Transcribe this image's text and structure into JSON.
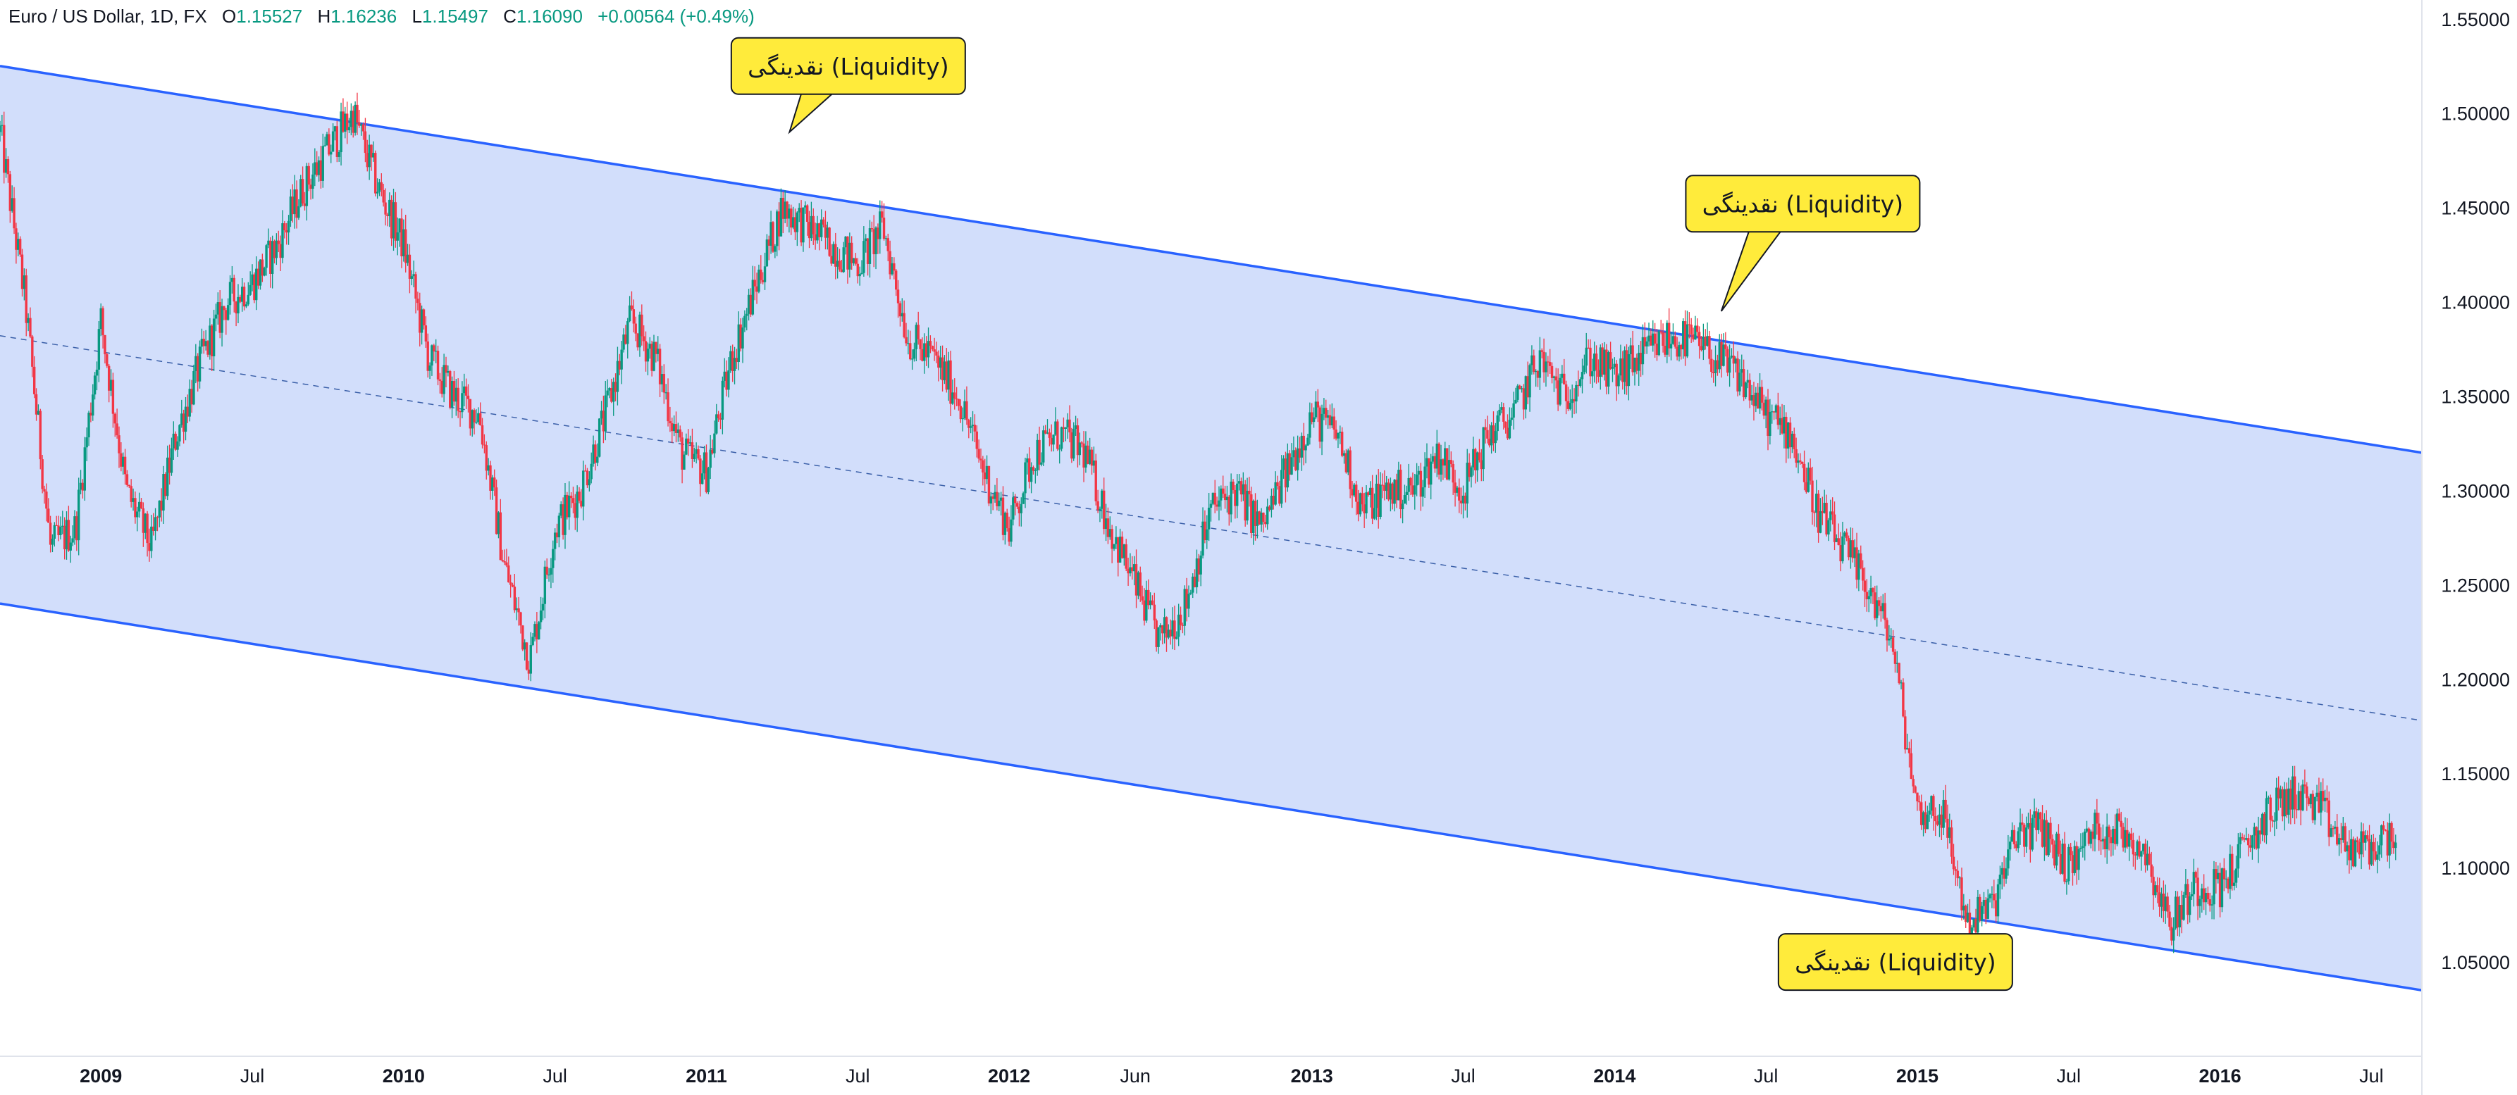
{
  "legend": {
    "symbol": "Euro / US Dollar, 1D, FX",
    "open_label": "O",
    "open": "1.15527",
    "high_label": "H",
    "high": "1.16236",
    "low_label": "L",
    "low": "1.15497",
    "close_label": "C",
    "close": "1.16090",
    "change": "+0.00564 (+0.49%)"
  },
  "colors": {
    "up": "#089981",
    "down": "#f23645",
    "channel_line": "#2962ff",
    "channel_fill": "#d2defb",
    "callout_fill": "#ffeb3b",
    "callout_stroke": "#131722"
  },
  "chart_data": {
    "type": "candlestick",
    "title": "",
    "x_range": [
      "2008-09",
      "2016-09"
    ],
    "ylim": [
      1.0,
      1.56
    ],
    "y_ticks": [
      "1.55000",
      "1.50000",
      "1.45000",
      "1.40000",
      "1.35000",
      "1.30000",
      "1.25000",
      "1.20000",
      "1.15000",
      "1.10000",
      "1.05000"
    ],
    "x_ticks": [
      {
        "label": "2009",
        "date": "2009-01",
        "year": true
      },
      {
        "label": "Jul",
        "date": "2009-07",
        "year": false
      },
      {
        "label": "2010",
        "date": "2010-01",
        "year": true
      },
      {
        "label": "Jul",
        "date": "2010-07",
        "year": false
      },
      {
        "label": "2011",
        "date": "2011-01",
        "year": true
      },
      {
        "label": "Jul",
        "date": "2011-07",
        "year": false
      },
      {
        "label": "2012",
        "date": "2012-01",
        "year": true
      },
      {
        "label": "Jun",
        "date": "2012-06",
        "year": false
      },
      {
        "label": "2013",
        "date": "2013-01",
        "year": true
      },
      {
        "label": "Jul",
        "date": "2013-07",
        "year": false
      },
      {
        "label": "2014",
        "date": "2014-01",
        "year": true
      },
      {
        "label": "Jul",
        "date": "2014-07",
        "year": false
      },
      {
        "label": "2015",
        "date": "2015-01",
        "year": true
      },
      {
        "label": "Jul",
        "date": "2015-07",
        "year": false
      },
      {
        "label": "2016",
        "date": "2016-01",
        "year": true
      },
      {
        "label": "Jul",
        "date": "2016-07",
        "year": false
      }
    ],
    "price_path": [
      [
        "2008-09",
        1.49
      ],
      [
        "2008-10",
        1.4
      ],
      [
        "2008-11",
        1.27
      ],
      [
        "2008-12",
        1.28
      ],
      [
        "2009-01",
        1.39
      ],
      [
        "2009-02",
        1.3
      ],
      [
        "2009-03",
        1.27
      ],
      [
        "2009-04",
        1.33
      ],
      [
        "2009-05",
        1.37
      ],
      [
        "2009-06",
        1.4
      ],
      [
        "2009-07",
        1.41
      ],
      [
        "2009-08",
        1.43
      ],
      [
        "2009-09",
        1.46
      ],
      [
        "2009-10",
        1.48
      ],
      [
        "2009-11",
        1.5
      ],
      [
        "2009-12",
        1.46
      ],
      [
        "2010-01",
        1.43
      ],
      [
        "2010-02",
        1.37
      ],
      [
        "2010-03",
        1.35
      ],
      [
        "2010-04",
        1.34
      ],
      [
        "2010-05",
        1.26
      ],
      [
        "2010-06",
        1.21
      ],
      [
        "2010-07",
        1.28
      ],
      [
        "2010-08",
        1.3
      ],
      [
        "2010-09",
        1.34
      ],
      [
        "2010-10",
        1.39
      ],
      [
        "2010-11",
        1.37
      ],
      [
        "2010-12",
        1.32
      ],
      [
        "2011-01",
        1.31
      ],
      [
        "2011-02",
        1.37
      ],
      [
        "2011-03",
        1.41
      ],
      [
        "2011-04",
        1.45
      ],
      [
        "2011-05",
        1.44
      ],
      [
        "2011-06",
        1.43
      ],
      [
        "2011-07",
        1.42
      ],
      [
        "2011-08",
        1.44
      ],
      [
        "2011-09",
        1.38
      ],
      [
        "2011-10",
        1.37
      ],
      [
        "2011-11",
        1.35
      ],
      [
        "2011-12",
        1.31
      ],
      [
        "2012-01",
        1.28
      ],
      [
        "2012-02",
        1.32
      ],
      [
        "2012-03",
        1.33
      ],
      [
        "2012-04",
        1.32
      ],
      [
        "2012-05",
        1.28
      ],
      [
        "2012-06",
        1.25
      ],
      [
        "2012-07",
        1.22
      ],
      [
        "2012-08",
        1.24
      ],
      [
        "2012-09",
        1.29
      ],
      [
        "2012-10",
        1.3
      ],
      [
        "2012-11",
        1.28
      ],
      [
        "2012-12",
        1.31
      ],
      [
        "2013-01",
        1.34
      ],
      [
        "2013-02",
        1.33
      ],
      [
        "2013-03",
        1.29
      ],
      [
        "2013-04",
        1.3
      ],
      [
        "2013-05",
        1.3
      ],
      [
        "2013-06",
        1.32
      ],
      [
        "2013-07",
        1.3
      ],
      [
        "2013-08",
        1.33
      ],
      [
        "2013-09",
        1.34
      ],
      [
        "2013-10",
        1.37
      ],
      [
        "2013-11",
        1.35
      ],
      [
        "2013-12",
        1.37
      ],
      [
        "2014-01",
        1.36
      ],
      [
        "2014-02",
        1.37
      ],
      [
        "2014-03",
        1.38
      ],
      [
        "2014-04",
        1.38
      ],
      [
        "2014-05",
        1.37
      ],
      [
        "2014-06",
        1.36
      ],
      [
        "2014-07",
        1.34
      ],
      [
        "2014-08",
        1.33
      ],
      [
        "2014-09",
        1.29
      ],
      [
        "2014-10",
        1.27
      ],
      [
        "2014-11",
        1.25
      ],
      [
        "2014-12",
        1.22
      ],
      [
        "2015-01",
        1.13
      ],
      [
        "2015-02",
        1.13
      ],
      [
        "2015-03",
        1.07
      ],
      [
        "2015-04",
        1.08
      ],
      [
        "2015-05",
        1.12
      ],
      [
        "2015-06",
        1.12
      ],
      [
        "2015-07",
        1.1
      ],
      [
        "2015-08",
        1.12
      ],
      [
        "2015-09",
        1.12
      ],
      [
        "2015-10",
        1.11
      ],
      [
        "2015-11",
        1.07
      ],
      [
        "2015-12",
        1.09
      ],
      [
        "2016-01",
        1.09
      ],
      [
        "2016-02",
        1.11
      ],
      [
        "2016-03",
        1.13
      ],
      [
        "2016-04",
        1.14
      ],
      [
        "2016-05",
        1.13
      ],
      [
        "2016-06",
        1.11
      ],
      [
        "2016-07",
        1.11
      ],
      [
        "2016-08",
        1.12
      ]
    ],
    "channel": {
      "upper": [
        [
          "2008-09",
          1.525
        ],
        [
          "2016-09",
          1.32
        ]
      ],
      "lower": [
        [
          "2008-09",
          1.24
        ],
        [
          "2016-09",
          1.035
        ]
      ],
      "mid": [
        [
          "2008-09",
          1.382
        ],
        [
          "2016-09",
          1.178
        ]
      ]
    },
    "annotations": [
      {
        "text": "نقدینگی (Liquidity)",
        "date": "2011-04-10",
        "price": 1.49,
        "box_date": "2011-06-20",
        "box_price": 1.525
      },
      {
        "text": "نقدینگی (Liquidity)",
        "date": "2014-05-08",
        "price": 1.395,
        "box_date": "2014-08-15",
        "box_price": 1.452
      },
      {
        "text": "نقدینگی (Liquidity)",
        "date": "2015-03-12",
        "price": 1.052,
        "box_date": "2014-12-05",
        "box_price": 1.05
      }
    ]
  }
}
